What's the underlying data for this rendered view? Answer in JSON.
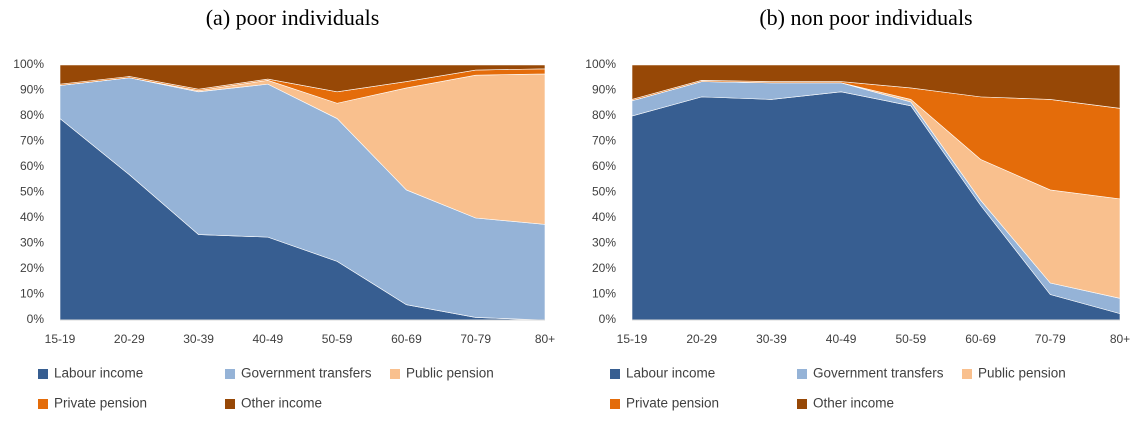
{
  "chart_data": [
    {
      "type": "stacked-area",
      "title": "(a) poor individuals",
      "categories": [
        "15-19",
        "20-29",
        "30-39",
        "40-49",
        "50-59",
        "60-69",
        "70-79",
        "80+"
      ],
      "series": [
        {
          "name": "Labour income",
          "color": "#375e91",
          "values": [
            79,
            57,
            33.5,
            32.5,
            23,
            6,
            1,
            0
          ]
        },
        {
          "name": "Government transfers",
          "color": "#95b3d7",
          "values": [
            13,
            38,
            56,
            60,
            56,
            45,
            39,
            37.5
          ]
        },
        {
          "name": "Public pension",
          "color": "#f9c08e",
          "values": [
            0,
            0,
            0.5,
            1.5,
            6,
            40,
            56,
            59
          ]
        },
        {
          "name": "Private pension",
          "color": "#e46c0a",
          "values": [
            0.5,
            0.5,
            0.5,
            0.5,
            4.5,
            2.5,
            2,
            2
          ]
        },
        {
          "name": "Other income",
          "color": "#974806",
          "values": [
            7.5,
            4.5,
            9.5,
            5.5,
            10.5,
            6.5,
            2,
            1.5
          ]
        }
      ],
      "ylim": [
        0,
        100
      ],
      "yticks": [
        {
          "value": 0,
          "label": "0%"
        },
        {
          "value": 10,
          "label": "10%"
        },
        {
          "value": 20,
          "label": "20%"
        },
        {
          "value": 30,
          "label": "30%"
        },
        {
          "value": 40,
          "label": "40%"
        },
        {
          "value": 50,
          "label": "50%"
        },
        {
          "value": 60,
          "label": "60%"
        },
        {
          "value": 70,
          "label": "70%"
        },
        {
          "value": 80,
          "label": "80%"
        },
        {
          "value": 90,
          "label": "90%"
        },
        {
          "value": 100,
          "label": "100%"
        }
      ]
    },
    {
      "type": "stacked-area",
      "title": "(b) non poor individuals",
      "categories": [
        "15-19",
        "20-29",
        "30-39",
        "40-49",
        "50-59",
        "60-69",
        "70-79",
        "80+"
      ],
      "series": [
        {
          "name": "Labour income",
          "color": "#375e91",
          "values": [
            80,
            87.5,
            86.5,
            89.5,
            84,
            45,
            10,
            2.5
          ]
        },
        {
          "name": "Government transfers",
          "color": "#95b3d7",
          "values": [
            6,
            6,
            6.5,
            3.5,
            1.5,
            2,
            4.5,
            6
          ]
        },
        {
          "name": "Public pension",
          "color": "#f9c08e",
          "values": [
            0,
            0,
            0,
            0,
            1,
            16,
            36.5,
            39
          ]
        },
        {
          "name": "Private pension",
          "color": "#e46c0a",
          "values": [
            0.5,
            0.5,
            0.5,
            0.5,
            4.5,
            24.5,
            35.5,
            35.5
          ]
        },
        {
          "name": "Other income",
          "color": "#974806",
          "values": [
            13.5,
            6,
            6.5,
            6.5,
            9,
            12.5,
            13.5,
            17
          ]
        }
      ],
      "ylim": [
        0,
        100
      ],
      "yticks": [
        {
          "value": 0,
          "label": "0%"
        },
        {
          "value": 10,
          "label": "10%"
        },
        {
          "value": 20,
          "label": "20%"
        },
        {
          "value": 30,
          "label": "30%"
        },
        {
          "value": 40,
          "label": "40%"
        },
        {
          "value": 50,
          "label": "50%"
        },
        {
          "value": 60,
          "label": "60%"
        },
        {
          "value": 70,
          "label": "70%"
        },
        {
          "value": 80,
          "label": "80%"
        },
        {
          "value": 90,
          "label": "90%"
        },
        {
          "value": 100,
          "label": "100%"
        }
      ]
    }
  ]
}
